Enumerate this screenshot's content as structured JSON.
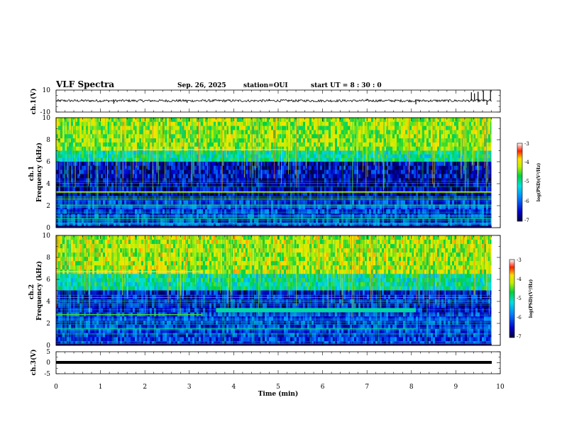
{
  "header": {
    "title": "VLF Spectra",
    "date": "Sep. 26, 2025",
    "station": "station=OUI",
    "start": "start UT =  8 : 30 : 0"
  },
  "chart_data": [
    {
      "type": "line",
      "name": "ch1-waveform",
      "ylabel": "ch.1(V)",
      "ylim": [
        -10,
        10
      ],
      "ytick_labels": [
        "10",
        "-10"
      ],
      "xlim": [
        0,
        10
      ],
      "baseline": 0.3,
      "spikes": [
        {
          "x": 1.3,
          "y": -2.4
        },
        {
          "x": 2.95,
          "y": -1.6
        },
        {
          "x": 4.8,
          "y": 1.8
        },
        {
          "x": 7.0,
          "y": 2.0
        },
        {
          "x": 8.1,
          "y": -3.0
        },
        {
          "x": 9.35,
          "y": 8.0
        },
        {
          "x": 9.42,
          "y": 7.0
        },
        {
          "x": 9.5,
          "y": 8.5
        },
        {
          "x": 9.62,
          "y": 9.5
        },
        {
          "x": 9.7,
          "y": -3.5
        },
        {
          "x": 9.78,
          "y": 9.8
        }
      ]
    },
    {
      "type": "heatmap",
      "name": "ch1-spectrogram",
      "ylabel": "ch.1\nFrequency (kHz)",
      "xlim": [
        0,
        9.8
      ],
      "ylim": [
        0,
        10
      ],
      "ytick_labels": [
        "10",
        "8",
        "6",
        "4",
        "2",
        "0"
      ],
      "colorbar": {
        "label": "log(PSD)(V²/Hz)",
        "range": [
          -7,
          -3
        ],
        "tick_labels": [
          "-3",
          "-4",
          "-5",
          "-6",
          "-7"
        ]
      },
      "bands": [
        {
          "from": 7.0,
          "to": 10.0,
          "level": -4.3
        },
        {
          "from": 6.0,
          "to": 7.0,
          "level": -5.0
        },
        {
          "from": 4.5,
          "to": 6.0,
          "level": -6.5
        },
        {
          "from": 2.5,
          "to": 4.5,
          "level": -6.6
        },
        {
          "from": 0.0,
          "to": 2.5,
          "level": -6.2
        }
      ],
      "lines": [
        {
          "f": 7.1,
          "t0": 1.7,
          "t1": 5.2,
          "level": -3.1
        },
        {
          "f": 3.25,
          "t0": 0,
          "t1": 9.8,
          "level": -3.8
        },
        {
          "f": 2.6,
          "t0": 0,
          "t1": 9.8,
          "level": -4.5
        },
        {
          "f": 2.0,
          "t0": 0,
          "t1": 9.8,
          "level": -5.0
        },
        {
          "f": 0.4,
          "t0": 0,
          "t1": 9.8,
          "level": -5.0
        }
      ]
    },
    {
      "type": "heatmap",
      "name": "ch2-spectrogram",
      "ylabel": "ch.2\nFrequency (kHz)",
      "xlim": [
        0,
        9.8
      ],
      "ylim": [
        0,
        10
      ],
      "ytick_labels": [
        "10",
        "8",
        "6",
        "4",
        "2",
        "0"
      ],
      "colorbar": {
        "label": "log(PSD)(V²/Hz)",
        "range": [
          -7,
          -3
        ],
        "tick_labels": [
          "-3",
          "-4",
          "-5",
          "-6",
          "-7"
        ]
      },
      "bands": [
        {
          "from": 6.5,
          "to": 10.0,
          "level": -4.2
        },
        {
          "from": 5.0,
          "to": 6.5,
          "level": -5.0
        },
        {
          "from": 3.0,
          "to": 5.0,
          "level": -6.4
        },
        {
          "from": 0.0,
          "to": 3.0,
          "level": -6.2
        }
      ],
      "lines": [
        {
          "f": 6.7,
          "t0": 0,
          "t1": 3.3,
          "level": -3.1
        },
        {
          "f": 3.2,
          "t0": 3.6,
          "t1": 8.1,
          "level": -5.0
        },
        {
          "f": 1.5,
          "t0": 0,
          "t1": 8.1,
          "level": -5.0
        },
        {
          "f": 2.8,
          "t0": 0,
          "t1": 3.3,
          "level": -4.5
        }
      ]
    },
    {
      "type": "line",
      "name": "ch3-waveform",
      "ylabel": "ch.3(V)",
      "ylim": [
        -5,
        5
      ],
      "ytick_labels": [
        "5",
        "0",
        "-5"
      ],
      "xlim": [
        0,
        10
      ],
      "baseline": 0.0
    }
  ],
  "xaxis": {
    "label": "Time (min)",
    "tick_labels": [
      "0",
      "1",
      "2",
      "3",
      "4",
      "5",
      "6",
      "7",
      "8",
      "9",
      "10"
    ]
  }
}
